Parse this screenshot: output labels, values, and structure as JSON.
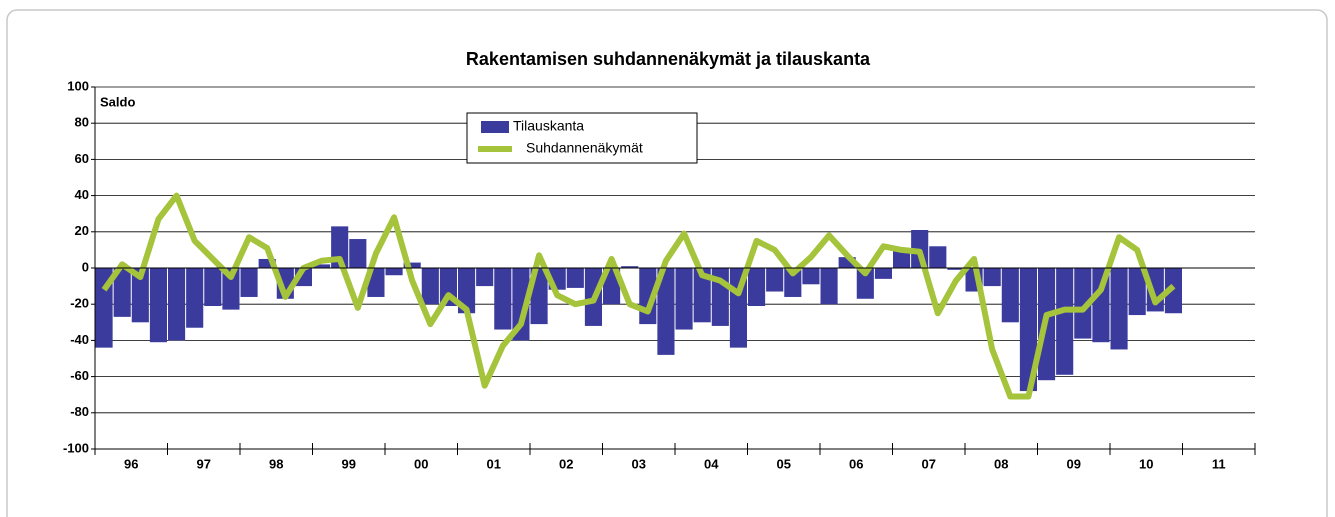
{
  "chart_data": {
    "type": "bar-line",
    "title": "Rakentamisen suhdannenäkymät ja tilauskanta",
    "y_label": "Saldo",
    "years": [
      "96",
      "97",
      "98",
      "99",
      "00",
      "01",
      "02",
      "03",
      "04",
      "05",
      "06",
      "07",
      "08",
      "09",
      "10",
      "11"
    ],
    "periods_per_year": 4,
    "ylim": [
      -100,
      100
    ],
    "yticks": [
      -100,
      -80,
      -60,
      -40,
      -20,
      0,
      20,
      40,
      60,
      80,
      100
    ],
    "grid": true,
    "series": [
      {
        "name": "Tilauskanta",
        "type": "bar",
        "color": "#3b3b9e",
        "values": [
          -44,
          -27,
          -30,
          -41,
          -40,
          -33,
          -21,
          -23,
          -16,
          5,
          -17,
          -10,
          2,
          23,
          16,
          -16,
          -4,
          3,
          -20,
          -21,
          -25,
          -10,
          -34,
          -40,
          -31,
          -12,
          -11,
          -32,
          -20,
          1,
          -31,
          -48,
          -34,
          -30,
          -32,
          -44,
          -21,
          -13,
          -16,
          -9,
          -20,
          6,
          -17,
          -6,
          10,
          21,
          12,
          -1,
          -13,
          -10,
          -30,
          -68,
          -62,
          -59,
          -39,
          -41,
          -45,
          -26,
          -24,
          -25
        ]
      },
      {
        "name": "Suhdannenäkymät",
        "type": "line",
        "color": "#a5c33b",
        "values": [
          -12,
          2,
          -5,
          27,
          40,
          15,
          5,
          -5,
          17,
          11,
          -16,
          0,
          4,
          5,
          -22,
          8,
          28,
          -7,
          -31,
          -15,
          -23,
          -65,
          -43,
          -31,
          7,
          -15,
          -20,
          -18,
          5,
          -20,
          -24,
          4,
          19,
          -4,
          -7,
          -14,
          15,
          10,
          -3,
          6,
          18,
          7,
          -3,
          12,
          10,
          9,
          -25,
          -7,
          5,
          -45,
          -71,
          -71,
          -26,
          -23,
          -23,
          -12,
          17,
          10,
          -19,
          -10
        ]
      }
    ]
  }
}
